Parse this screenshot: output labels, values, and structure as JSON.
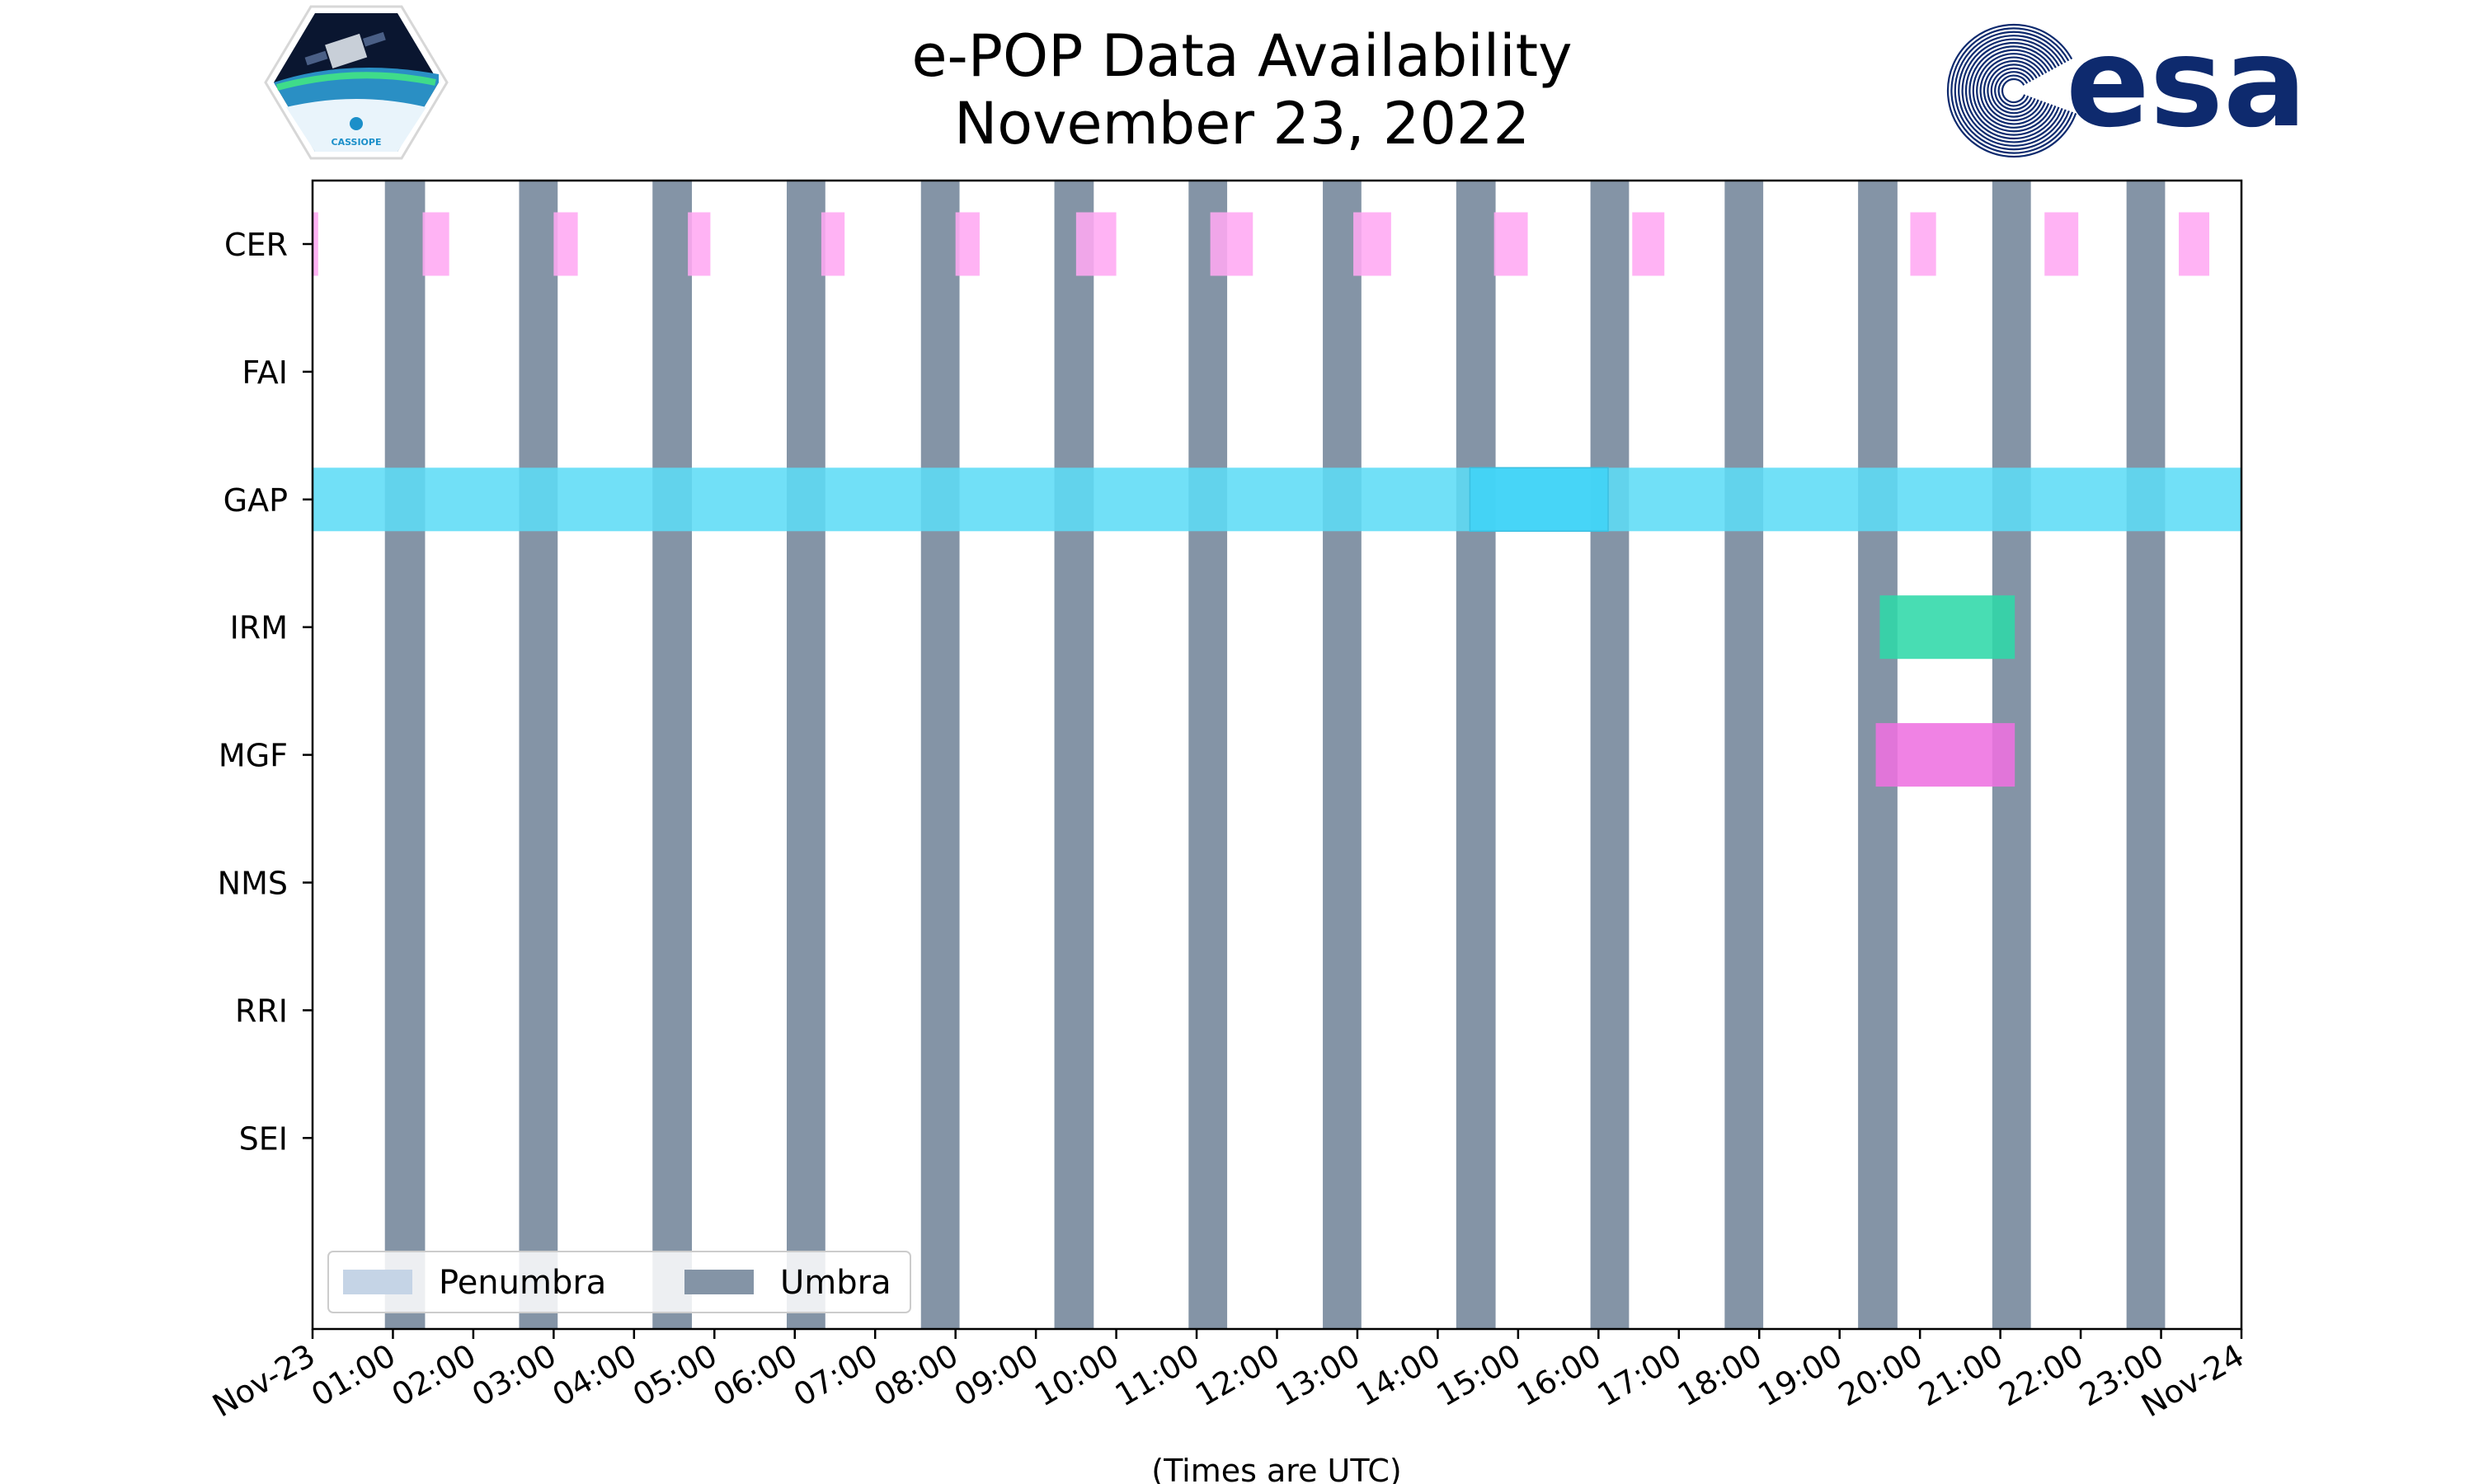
{
  "title_line1": "e-POP Data Availability",
  "title_line2": "November 23, 2022",
  "logo_left_text": "CASSIOPE",
  "logo_right_text": "esa",
  "colors": {
    "umbra": "#8494a6",
    "penumbra": "#c5d4e6",
    "CER": "#ffa8f2",
    "GAP": "#5ddcf6",
    "GAP_dark": "#3fd2f7",
    "IRM": "#2fd8a8",
    "MGF": "#ee71e0",
    "esa_blue": "#0e2a6e"
  },
  "chart_data": {
    "type": "timeline",
    "xlabel": "(Times are UTC)",
    "xlim": [
      0,
      24
    ],
    "xtick_labels": [
      "Nov-23",
      "01:00",
      "02:00",
      "03:00",
      "04:00",
      "05:00",
      "06:00",
      "07:00",
      "08:00",
      "09:00",
      "10:00",
      "11:00",
      "12:00",
      "13:00",
      "14:00",
      "15:00",
      "16:00",
      "17:00",
      "18:00",
      "19:00",
      "20:00",
      "21:00",
      "22:00",
      "23:00",
      "Nov-24"
    ],
    "xtick_values": [
      0,
      1,
      2,
      3,
      4,
      5,
      6,
      7,
      8,
      9,
      10,
      11,
      12,
      13,
      14,
      15,
      16,
      17,
      18,
      19,
      20,
      21,
      22,
      23,
      24
    ],
    "categories": [
      "CER",
      "FAI",
      "GAP",
      "IRM",
      "MGF",
      "NMS",
      "RRI",
      "SEI"
    ],
    "legend": {
      "location": "lower-left",
      "entries": [
        {
          "label": "Penumbra",
          "color_key": "penumbra"
        },
        {
          "label": "Umbra",
          "color_key": "umbra"
        }
      ]
    },
    "umbra_intervals": [
      [
        0.9,
        1.4
      ],
      [
        2.57,
        3.05
      ],
      [
        4.23,
        4.72
      ],
      [
        5.9,
        6.38
      ],
      [
        7.57,
        8.05
      ],
      [
        9.23,
        9.72
      ],
      [
        10.9,
        11.38
      ],
      [
        12.57,
        13.05
      ],
      [
        14.23,
        14.72
      ],
      [
        15.9,
        16.38
      ],
      [
        17.57,
        18.05
      ],
      [
        19.23,
        19.72
      ],
      [
        20.9,
        21.38
      ],
      [
        22.57,
        23.05
      ]
    ],
    "penumbra_intervals": [],
    "series": [
      {
        "name": "CER",
        "color_key": "CER",
        "intervals": [
          [
            0.0,
            0.07
          ],
          [
            1.37,
            1.7
          ],
          [
            3.0,
            3.3
          ],
          [
            4.67,
            4.95
          ],
          [
            6.33,
            6.62
          ],
          [
            8.0,
            8.3
          ],
          [
            9.5,
            10.0
          ],
          [
            11.17,
            11.7
          ],
          [
            12.95,
            13.42
          ],
          [
            14.7,
            15.12
          ],
          [
            16.42,
            16.82
          ],
          [
            19.88,
            20.2
          ],
          [
            21.55,
            21.97
          ],
          [
            23.22,
            23.6
          ]
        ]
      },
      {
        "name": "FAI",
        "color_key": "CER",
        "intervals": []
      },
      {
        "name": "GAP",
        "color_key": "GAP",
        "intervals": [
          [
            0.0,
            24.0
          ]
        ],
        "highlight": [
          [
            14.4,
            16.12
          ]
        ]
      },
      {
        "name": "IRM",
        "color_key": "IRM",
        "intervals": [
          [
            19.5,
            21.18
          ]
        ]
      },
      {
        "name": "MGF",
        "color_key": "MGF",
        "intervals": [
          [
            19.45,
            21.18
          ]
        ]
      },
      {
        "name": "NMS",
        "color_key": "MGF",
        "intervals": []
      },
      {
        "name": "RRI",
        "color_key": "MGF",
        "intervals": []
      },
      {
        "name": "SEI",
        "color_key": "MGF",
        "intervals": []
      }
    ]
  }
}
